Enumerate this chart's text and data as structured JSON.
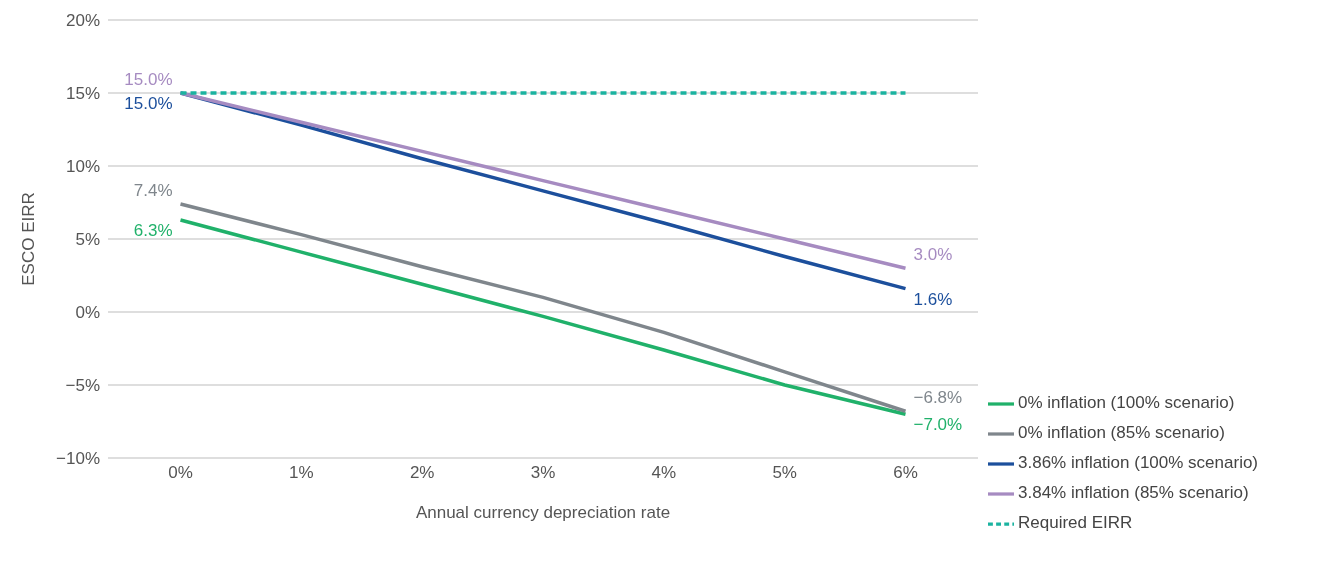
{
  "chart_data": {
    "type": "line",
    "xlabel": "Annual currency depreciation rate",
    "ylabel": "ESCO EIRR",
    "x": [
      0,
      1,
      2,
      3,
      4,
      5,
      6
    ],
    "series": [
      {
        "name": "0% inflation (100% scenario)",
        "color": "#20b16a",
        "values": [
          6.3,
          4.1,
          1.9,
          -0.3,
          -2.6,
          -5.0,
          -7.0
        ],
        "value_labels": [
          "6.3%",
          null,
          null,
          null,
          null,
          null,
          "−7.0%"
        ]
      },
      {
        "name": "0% inflation (85% scenario)",
        "color": "#7f868c",
        "values": [
          7.4,
          5.3,
          3.1,
          1.0,
          -1.4,
          -4.1,
          -6.8
        ],
        "value_labels": [
          "7.4%",
          null,
          null,
          null,
          null,
          null,
          "−6.8%"
        ]
      },
      {
        "name": "3.86% inflation (100% scenario)",
        "color": "#1c4f9c",
        "values": [
          15.0,
          12.8,
          10.5,
          8.3,
          6.1,
          3.8,
          1.6
        ],
        "value_labels": [
          "15.0%",
          null,
          null,
          null,
          null,
          null,
          "1.6%"
        ]
      },
      {
        "name": "3.84% inflation (85% scenario)",
        "color": "#a68bc1",
        "values": [
          15.0,
          13.0,
          11.0,
          9.0,
          7.0,
          5.0,
          3.0
        ],
        "value_labels": [
          "15.0%",
          null,
          null,
          null,
          null,
          null,
          "3.0%"
        ]
      },
      {
        "name": "Required EIRR",
        "color": "#1bb3a0",
        "values": [
          15,
          15,
          15,
          15,
          15,
          15,
          15
        ],
        "line_style": "dashed"
      }
    ],
    "xlim": [
      -0.6,
      6.6
    ],
    "xticks": [
      {
        "value": 0,
        "label": "0%"
      },
      {
        "value": 1,
        "label": "1%"
      },
      {
        "value": 2,
        "label": "2%"
      },
      {
        "value": 3,
        "label": "3%"
      },
      {
        "value": 4,
        "label": "4%"
      },
      {
        "value": 5,
        "label": "5%"
      },
      {
        "value": 6,
        "label": "6%"
      }
    ],
    "ylim": [
      -10,
      20
    ],
    "yticks": [
      {
        "value": -10,
        "label": "−10%"
      },
      {
        "value": -5,
        "label": "−5%"
      },
      {
        "value": 0,
        "label": "0%"
      },
      {
        "value": 5,
        "label": "5%"
      },
      {
        "value": 10,
        "label": "10%"
      },
      {
        "value": 15,
        "label": "15%"
      },
      {
        "value": 20,
        "label": "20%"
      }
    ],
    "grid": "y",
    "legend": "bottom right",
    "marker": "none",
    "line_style": "solid"
  }
}
